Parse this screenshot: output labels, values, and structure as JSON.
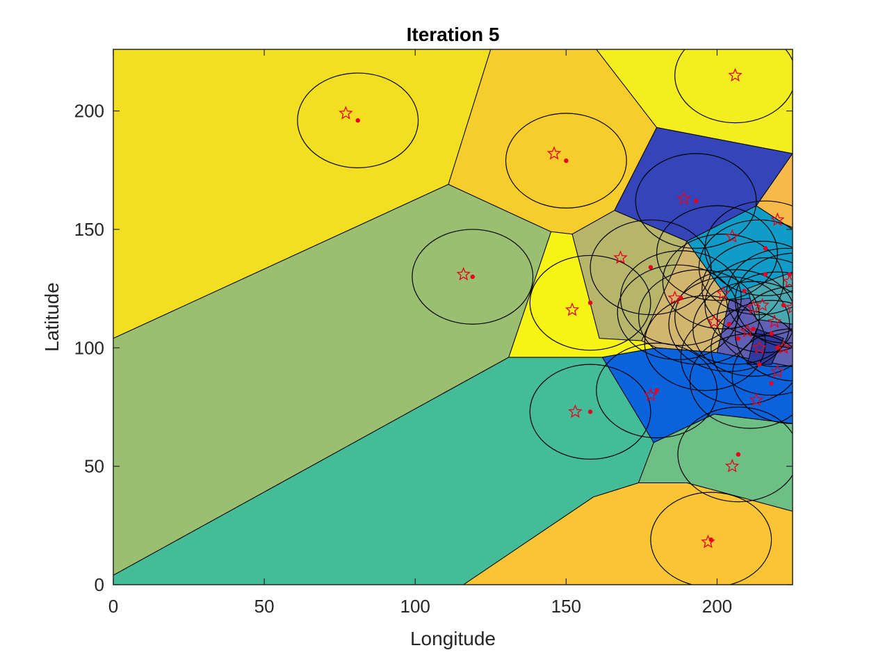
{
  "chart_data": {
    "type": "scatter",
    "subtype": "voronoi-coverage",
    "title": "Iteration 5",
    "xlabel": "Longitude",
    "ylabel": "Latitude",
    "xlim": [
      0,
      225
    ],
    "ylim": [
      0,
      226
    ],
    "xticks": [
      0,
      50,
      100,
      150,
      200
    ],
    "yticks": [
      0,
      50,
      100,
      150,
      200
    ],
    "grid": false,
    "legend": "none",
    "box": true,
    "colors": {
      "star": "#e8001c",
      "dot": "#e8001c",
      "circle": "#000000",
      "cell_edge": "#000000"
    },
    "coverage_radius": 20,
    "cells": [
      {
        "color": "#f2df22",
        "polygon": [
          [
            0,
            104
          ],
          [
            111,
            169
          ],
          [
            125,
            226
          ],
          [
            0,
            226
          ]
        ]
      },
      {
        "color": "#9bbf70",
        "polygon": [
          [
            0,
            104
          ],
          [
            111,
            169
          ],
          [
            145,
            149
          ],
          [
            131,
            96
          ],
          [
            0,
            4
          ]
        ]
      },
      {
        "color": "#44bc98",
        "polygon": [
          [
            0,
            4
          ],
          [
            131,
            96
          ],
          [
            162,
            96
          ],
          [
            179,
            60
          ],
          [
            174,
            43
          ],
          [
            159,
            37
          ],
          [
            116,
            0
          ],
          [
            0,
            0
          ]
        ]
      },
      {
        "color": "#f6cd2a",
        "polygon": [
          [
            111,
            169
          ],
          [
            125,
            226
          ],
          [
            160,
            226
          ],
          [
            180,
            193
          ],
          [
            166,
            158
          ],
          [
            152,
            148
          ],
          [
            145,
            149
          ]
        ]
      },
      {
        "color": "#f4ed20",
        "polygon": [
          [
            160,
            226
          ],
          [
            225,
            226
          ],
          [
            225,
            182
          ],
          [
            180,
            193
          ]
        ]
      },
      {
        "color": "#3345b8",
        "polygon": [
          [
            180,
            193
          ],
          [
            166,
            158
          ],
          [
            190,
            145
          ],
          [
            213,
            160
          ],
          [
            225,
            182
          ]
        ]
      },
      {
        "color": "#b7b56a",
        "polygon": [
          [
            152,
            148
          ],
          [
            166,
            158
          ],
          [
            190,
            145
          ],
          [
            175,
            103
          ],
          [
            161,
            104
          ]
        ]
      },
      {
        "color": "#f7f314",
        "polygon": [
          [
            145,
            149
          ],
          [
            152,
            148
          ],
          [
            161,
            104
          ],
          [
            175,
            103
          ],
          [
            180,
            100
          ],
          [
            162,
            96
          ],
          [
            131,
            96
          ]
        ]
      },
      {
        "color": "#d3b66e",
        "polygon": [
          [
            190,
            145
          ],
          [
            175,
            103
          ],
          [
            180,
            100
          ],
          [
            200,
            98
          ],
          [
            204,
            120
          ]
        ]
      },
      {
        "color": "#109cc6",
        "polygon": [
          [
            190,
            145
          ],
          [
            213,
            160
          ],
          [
            225,
            150
          ],
          [
            225,
            123
          ],
          [
            204,
            120
          ]
        ]
      },
      {
        "color": "#f6b94a",
        "polygon": [
          [
            213,
            160
          ],
          [
            225,
            182
          ],
          [
            225,
            150
          ]
        ]
      },
      {
        "color": "#0a62dc",
        "polygon": [
          [
            162,
            96
          ],
          [
            180,
            100
          ],
          [
            200,
            98
          ],
          [
            225,
            92
          ],
          [
            225,
            68
          ],
          [
            199,
            72
          ],
          [
            179,
            60
          ]
        ]
      },
      {
        "color": "#6dbf86",
        "polygon": [
          [
            174,
            43
          ],
          [
            179,
            60
          ],
          [
            199,
            72
          ],
          [
            225,
            68
          ],
          [
            225,
            31
          ],
          [
            190,
            43
          ]
        ]
      },
      {
        "color": "#fac534",
        "polygon": [
          [
            116,
            0
          ],
          [
            159,
            37
          ],
          [
            174,
            43
          ],
          [
            190,
            43
          ],
          [
            225,
            31
          ],
          [
            225,
            0
          ]
        ]
      },
      {
        "color": "#5f5fb4",
        "polygon": [
          [
            200,
            98
          ],
          [
            204,
            120
          ],
          [
            225,
            123
          ],
          [
            225,
            92
          ]
        ]
      },
      {
        "color": "#4aa8b0",
        "polygon": [
          [
            210,
            125
          ],
          [
            225,
            132
          ],
          [
            225,
            110
          ],
          [
            213,
            112
          ]
        ]
      },
      {
        "color": "#2e3a9e",
        "polygon": [
          [
            210,
            93
          ],
          [
            218,
            93
          ],
          [
            222,
            104
          ],
          [
            213,
            108
          ]
        ]
      }
    ],
    "stars": [
      [
        77,
        199
      ],
      [
        206,
        215
      ],
      [
        146,
        182
      ],
      [
        189,
        163
      ],
      [
        116,
        131
      ],
      [
        168,
        138
      ],
      [
        152,
        116
      ],
      [
        205,
        147
      ],
      [
        220,
        154
      ],
      [
        186,
        121
      ],
      [
        202,
        123
      ],
      [
        199,
        111
      ],
      [
        210,
        107
      ],
      [
        219,
        111
      ],
      [
        214,
        100
      ],
      [
        222,
        100
      ],
      [
        215,
        118
      ],
      [
        224,
        128
      ],
      [
        220,
        90
      ],
      [
        213,
        78
      ],
      [
        153,
        73
      ],
      [
        178,
        80
      ],
      [
        205,
        50
      ],
      [
        197,
        18
      ],
      [
        212,
        117
      ],
      [
        225,
        117
      ]
    ],
    "dots": [
      [
        81,
        196
      ],
      [
        150,
        179
      ],
      [
        193,
        162
      ],
      [
        119,
        130
      ],
      [
        158,
        119
      ],
      [
        178,
        134
      ],
      [
        216,
        142
      ],
      [
        188,
        121
      ],
      [
        204,
        110
      ],
      [
        207,
        104
      ],
      [
        212,
        108
      ],
      [
        222,
        118
      ],
      [
        216,
        131
      ],
      [
        218,
        106
      ],
      [
        220,
        100
      ],
      [
        218,
        85
      ],
      [
        180,
        82
      ],
      [
        158,
        73
      ],
      [
        207,
        55
      ],
      [
        198,
        19
      ],
      [
        209,
        124
      ],
      [
        224,
        131
      ],
      [
        214,
        93
      ]
    ],
    "circle_centers": [
      [
        81,
        196
      ],
      [
        206,
        215
      ],
      [
        150,
        179
      ],
      [
        193,
        162
      ],
      [
        119,
        130
      ],
      [
        158,
        119
      ],
      [
        178,
        134
      ],
      [
        188,
        121
      ],
      [
        200,
        140
      ],
      [
        216,
        142
      ],
      [
        206,
        113
      ],
      [
        216,
        118
      ],
      [
        204,
        110
      ],
      [
        212,
        108
      ],
      [
        220,
        112
      ],
      [
        218,
        100
      ],
      [
        226,
        106
      ],
      [
        194,
        113
      ],
      [
        215,
        125
      ],
      [
        211,
        86
      ],
      [
        225,
        88
      ],
      [
        180,
        82
      ],
      [
        158,
        73
      ],
      [
        207,
        55
      ],
      [
        198,
        19
      ],
      [
        187,
        115
      ],
      [
        208,
        96
      ],
      [
        223,
        122
      ],
      [
        202,
        128
      ],
      [
        196,
        102
      ],
      [
        226,
        120
      ],
      [
        214,
        134
      ]
    ]
  }
}
